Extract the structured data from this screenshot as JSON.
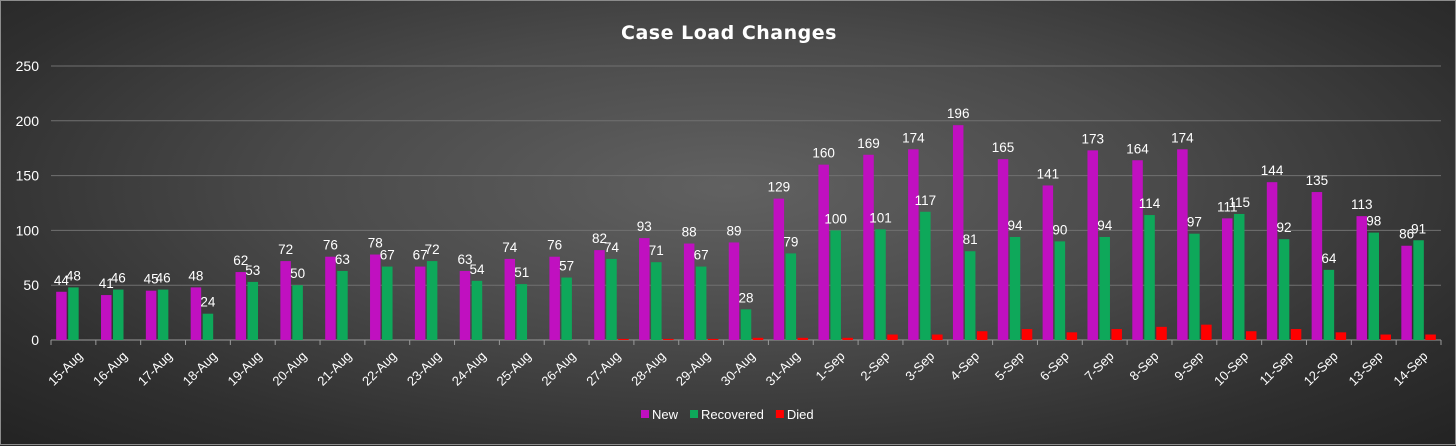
{
  "chart_data": {
    "type": "bar",
    "title": "Case Load Changes",
    "xlabel": "",
    "ylabel": "",
    "ylim": [
      0,
      250
    ],
    "yticks": [
      0,
      50,
      100,
      150,
      200,
      250
    ],
    "grid": true,
    "legend_position": "bottom",
    "categories": [
      "15-Aug",
      "16-Aug",
      "17-Aug",
      "18-Aug",
      "19-Aug",
      "20-Aug",
      "21-Aug",
      "22-Aug",
      "23-Aug",
      "24-Aug",
      "25-Aug",
      "26-Aug",
      "27-Aug",
      "28-Aug",
      "29-Aug",
      "30-Aug",
      "31-Aug",
      "1-Sep",
      "2-Sep",
      "3-Sep",
      "4-Sep",
      "5-Sep",
      "6-Sep",
      "7-Sep",
      "8-Sep",
      "9-Sep",
      "10-Sep",
      "11-Sep",
      "12-Sep",
      "13-Sep",
      "14-Sep"
    ],
    "series": [
      {
        "name": "New",
        "color": "#c010c0",
        "labeled": true,
        "values": [
          44,
          41,
          45,
          48,
          62,
          72,
          76,
          78,
          67,
          63,
          74,
          76,
          82,
          93,
          88,
          89,
          129,
          160,
          169,
          174,
          196,
          165,
          141,
          173,
          164,
          174,
          111,
          144,
          135,
          113,
          86
        ]
      },
      {
        "name": "Recovered",
        "color": "#0ea85a",
        "labeled": true,
        "values": [
          48,
          46,
          46,
          24,
          53,
          50,
          63,
          67,
          72,
          54,
          51,
          57,
          74,
          71,
          67,
          28,
          79,
          100,
          101,
          117,
          81,
          94,
          90,
          94,
          114,
          97,
          115,
          92,
          64,
          98,
          91
        ]
      },
      {
        "name": "Died",
        "color": "#ff0000",
        "labeled": false,
        "values": [
          0,
          0,
          0,
          0,
          0,
          0,
          0,
          0,
          0,
          0,
          0,
          0,
          1,
          1,
          1,
          2,
          2,
          2,
          5,
          5,
          8,
          10,
          7,
          10,
          12,
          14,
          8,
          10,
          7,
          5,
          5
        ]
      }
    ]
  }
}
